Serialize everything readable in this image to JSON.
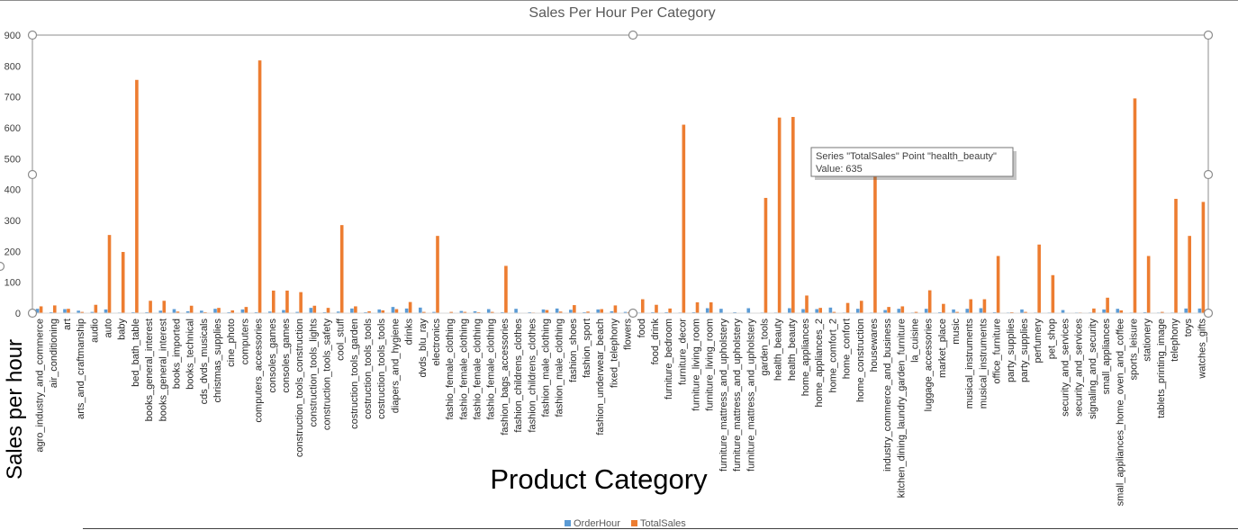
{
  "chart_data": {
    "type": "bar",
    "title": "Sales Per Hour Per Category",
    "xlabel": "Product Category",
    "ylabel": "Sales per hour",
    "ylim": [
      0,
      900
    ],
    "yticks": [
      0,
      100,
      200,
      300,
      400,
      500,
      600,
      700,
      800,
      900
    ],
    "grid": false,
    "legend_position": "bottom",
    "categories": [
      "agro_industry_and_commerce",
      "air_conditioning",
      "art",
      "arts_and_craftmanship",
      "audio",
      "auto",
      "baby",
      "bed_bath_table",
      "books_general_interest",
      "books_general_interest",
      "books_imported",
      "books_technical",
      "cds_dvds_musicals",
      "christmas_supplies",
      "cine_photo",
      "computers",
      "computers_accessories",
      "consoles_games",
      "consoles_games",
      "construction_tools_construction",
      "construction_tools_lights",
      "construction_tools_safety",
      "cool_stuff",
      "costruction_tools_garden",
      "costruction_tools_tools",
      "costruction_tools_tools",
      "diapers_and_hygiene",
      "drinks",
      "dvds_blu_ray",
      "electronics",
      "fashio_female_clothing",
      "fashio_female_clothing",
      "fashio_female_clothing",
      "fashio_female_clothing",
      "fashion_bags_accessories",
      "fashion_childrens_clothes",
      "fashion_childrens_clothes",
      "fashion_male_clothing",
      "fashion_male_clothing",
      "fashion_shoes",
      "fashion_sport",
      "fashion_underwear_beach",
      "fixed_telephony",
      "flowers",
      "food",
      "food_drink",
      "furniture_bedroom",
      "furniture_decor",
      "furniture_living_room",
      "furniture_living_room",
      "furniture_mattress_and_upholstery",
      "furniture_mattress_and_upholstery",
      "furniture_mattress_and_upholstery",
      "garden_tools",
      "health_beauty",
      "health_beauty",
      "home_appliances",
      "home_appliances_2",
      "home_comfort_2",
      "home_confort",
      "home_construction",
      "housewares",
      "industry_commerce_and_business",
      "kitchen_dining_laundry_garden_furniture",
      "la_cuisine",
      "luggage_accessories",
      "market_place",
      "music",
      "musical_instruments",
      "musical_instruments",
      "office_furniture",
      "party_supplies",
      "party_supplies",
      "perfumery",
      "pet_shop",
      "security_and_services",
      "security_and_services",
      "signaling_and_security",
      "small_appliances",
      "small_appliances_home_oven_and_coffee",
      "sports_leisure",
      "stationery",
      "tablets_printing_image",
      "telephony",
      "toys",
      "watches_gifts"
    ],
    "series": [
      {
        "name": "OrderHour",
        "color": "#5B9BD5",
        "values": [
          14,
          3,
          13,
          8,
          4,
          12,
          2,
          3,
          3,
          8,
          13,
          6,
          8,
          14,
          3,
          12,
          3,
          5,
          10,
          4,
          17,
          3,
          5,
          15,
          3,
          12,
          20,
          15,
          18,
          4,
          1,
          7,
          6,
          13,
          3,
          14,
          3,
          12,
          15,
          11,
          3,
          12,
          6,
          4,
          2,
          3,
          3,
          2,
          3,
          16,
          14,
          3,
          16,
          2,
          2,
          16,
          13,
          13,
          18,
          2,
          14,
          2,
          10,
          14,
          2,
          14,
          3,
          12,
          14,
          16,
          3,
          2,
          12,
          2,
          2,
          10,
          2,
          2,
          12,
          14,
          2,
          3,
          2,
          2,
          15,
          15
        ]
      },
      {
        "name": "TotalSales",
        "color": "#ED7D31",
        "values": [
          22,
          25,
          14,
          4,
          27,
          253,
          198,
          755,
          40,
          40,
          5,
          24,
          3,
          17,
          9,
          20,
          818,
          73,
          73,
          68,
          24,
          17,
          285,
          22,
          6,
          9,
          13,
          36,
          4,
          250,
          4,
          4,
          3,
          4,
          153,
          1,
          2,
          10,
          5,
          26,
          5,
          13,
          25,
          3,
          45,
          27,
          15,
          610,
          35,
          35,
          1,
          1,
          1,
          373,
          633,
          635,
          57,
          17,
          4,
          33,
          40,
          468,
          20,
          22,
          4,
          74,
          30,
          4,
          45,
          45,
          185,
          3,
          4,
          222,
          123,
          1,
          2,
          15,
          50,
          9,
          695,
          185,
          4,
          370,
          250,
          360
        ]
      }
    ],
    "tooltip": {
      "line1": "Series \"TotalSales\" Point \"health_beauty\"",
      "line2": "Value: 635"
    }
  }
}
